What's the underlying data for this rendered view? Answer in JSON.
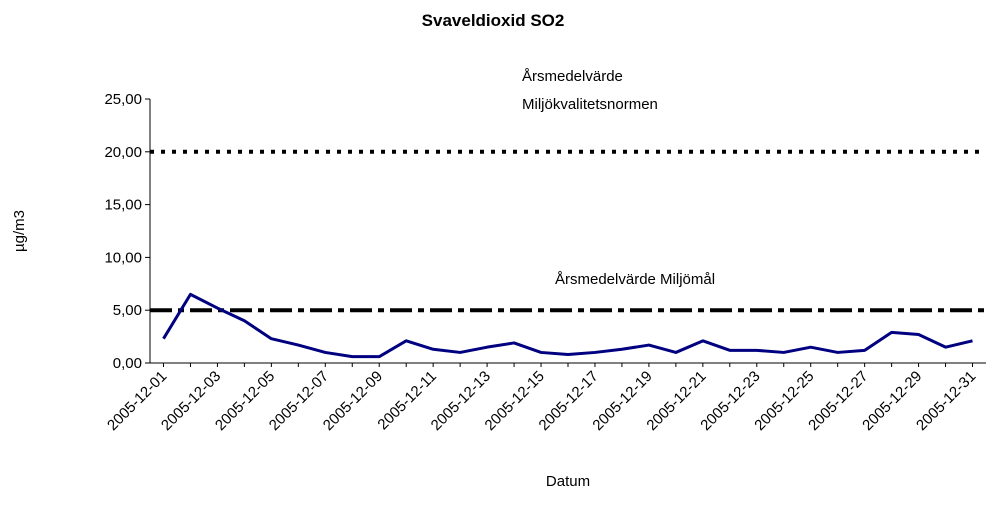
{
  "chart_data": {
    "type": "line",
    "title": "Svaveldioxid SO2",
    "x_label": "Datum",
    "y_label": "µg/m3",
    "categories": [
      "2005-12-01",
      null,
      "2005-12-03",
      null,
      "2005-12-05",
      null,
      "2005-12-07",
      null,
      "2005-12-09",
      null,
      "2005-12-11",
      null,
      "2005-12-13",
      null,
      "2005-12-15",
      null,
      "2005-12-17",
      null,
      "2005-12-19",
      null,
      "2005-12-21",
      null,
      "2005-12-23",
      null,
      "2005-12-25",
      null,
      "2005-12-27",
      null,
      "2005-12-29",
      null,
      "2005-12-31"
    ],
    "series": [
      {
        "color": "#000080",
        "values": [
          2.3,
          6.5,
          5.2,
          4.0,
          2.3,
          1.7,
          1.0,
          0.6,
          0.6,
          2.1,
          1.3,
          1.0,
          1.5,
          1.9,
          1.0,
          0.8,
          1.0,
          1.3,
          1.7,
          1.0,
          2.1,
          1.2,
          1.2,
          1.0,
          1.5,
          1.0,
          1.2,
          2.9,
          2.7,
          1.5,
          2.1
        ]
      }
    ],
    "reference_lines": [
      {
        "value": 20,
        "style": "dotted",
        "label": [
          "Årsmedelvärde",
          "Miljökvalitetsnormen"
        ]
      },
      {
        "value": 5,
        "style": "dashdot",
        "label": [
          "Årsmedelvärde Miljömål"
        ]
      }
    ],
    "ylim": [
      0,
      25
    ],
    "yticks": [
      {
        "value": 0,
        "label": "0,00"
      },
      {
        "value": 5,
        "label": "5,00"
      },
      {
        "value": 10,
        "label": "10,00"
      },
      {
        "value": 15,
        "label": "15,00"
      },
      {
        "value": 20,
        "label": "20,00"
      },
      {
        "value": 25,
        "label": "25,00"
      }
    ],
    "grid": false
  }
}
